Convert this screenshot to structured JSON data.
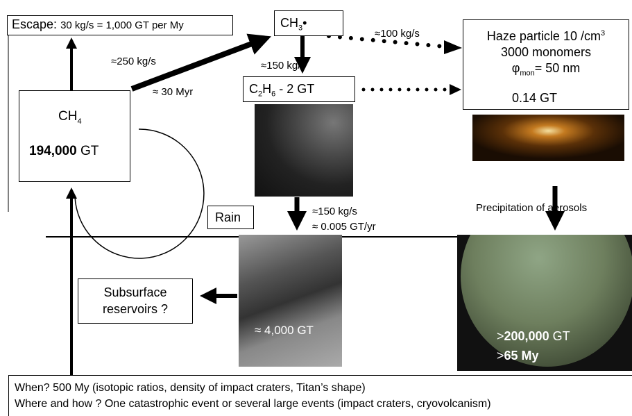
{
  "escape": {
    "label": "Escape:",
    "detail": "30 kg/s = 1,000 GT per My"
  },
  "ch3": {
    "text": "CH",
    "sub": "3",
    "suffix": "•"
  },
  "flux_ch3_haze": "≈100 kg/s",
  "haze": {
    "line1": "Haze particle 10 /cm",
    "line1_sup": "3",
    "line2": "3000 monomers",
    "phi": "φ",
    "phi_sub": "mon",
    "phi_rest": "= 50 nm",
    "mass": "0.14 GT"
  },
  "flux_ch4_ch3": "≈250 kg/s",
  "time_ch4_ch3": "≈ 30 Myr",
  "flux_ch3_c2h6": "≈150 kg/s",
  "c2h6": {
    "c": "C",
    "c_sub": "2",
    "h": "H",
    "h_sub": "6",
    "rest": " - 2 GT"
  },
  "ch4": {
    "text": "CH",
    "sub": "4",
    "mass_bold": "194,000",
    "mass_unit": " GT"
  },
  "rain": "Rain",
  "flux_rain": "≈150 kg/s",
  "rate_rain": "≈ 0.005 GT/yr",
  "precipitation": "Precipitation of aerosols",
  "subsurface": {
    "line1": "Subsurface",
    "line2": "reservoirs ?"
  },
  "lakes": "≈ 4,000 GT",
  "surface": {
    "prefix": ">",
    "mass_bold": "200,000",
    "mass_unit": " GT",
    "age_prefix": ">",
    "age_bold": "65 My"
  },
  "footer": {
    "line1": "When? 500 My (isotopic ratios, density of impact craters, Titan’s shape)",
    "line2": "Where and how ? One catastrophic event or several large events (impact craters, cryovolcanism)"
  }
}
